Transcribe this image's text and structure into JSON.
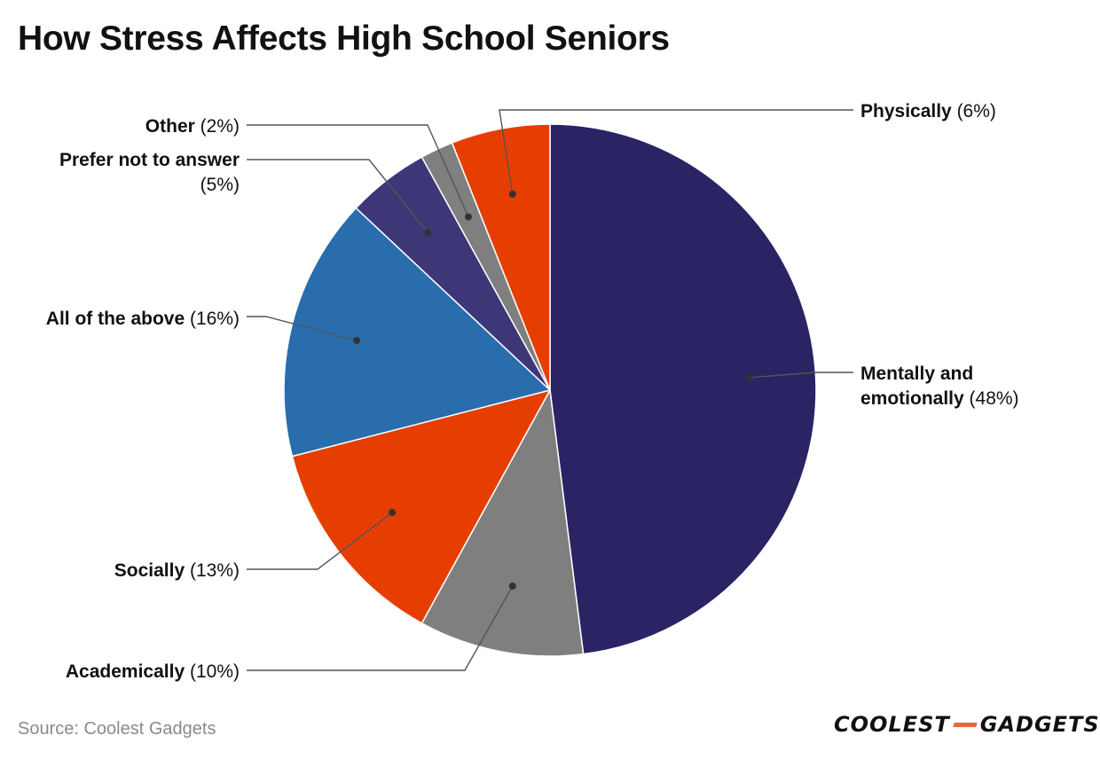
{
  "title": "How Stress Affects High School Seniors",
  "source": "Source: Coolest Gadgets",
  "logo": {
    "part1": "COOLEST",
    "part2": "GADGETS",
    "accent_color": "#e8663d"
  },
  "chart_data": {
    "type": "pie",
    "title": "How Stress Affects High School Seniors",
    "start_angle_deg": 0,
    "direction": "clockwise",
    "slices": [
      {
        "label_lines": [
          "Mentally and",
          "emotionally"
        ],
        "value": 48,
        "pct_text": "(48%)",
        "color": "#2a2364"
      },
      {
        "label_lines": [
          "Academically"
        ],
        "value": 10,
        "pct_text": "(10%)",
        "color": "#7f7f7f"
      },
      {
        "label_lines": [
          "Socially"
        ],
        "value": 13,
        "pct_text": "(13%)",
        "color": "#e63e00"
      },
      {
        "label_lines": [
          "All of the above"
        ],
        "value": 16,
        "pct_text": "(16%)",
        "color": "#2a6dad"
      },
      {
        "label_lines": [
          "Prefer not to answer"
        ],
        "value": 5,
        "pct_text": "(5%)",
        "color": "#3d3677"
      },
      {
        "label_lines": [
          "Other"
        ],
        "value": 2,
        "pct_text": "(2%)",
        "color": "#7f7f7f"
      },
      {
        "label_lines": [
          "Physically"
        ],
        "value": 6,
        "pct_text": "(6%)",
        "color": "#e63e00"
      }
    ]
  }
}
